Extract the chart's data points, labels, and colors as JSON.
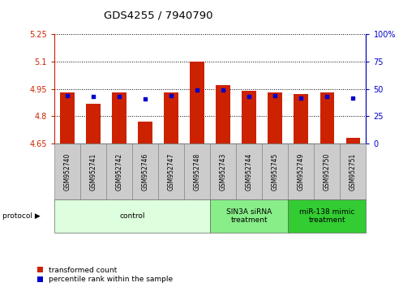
{
  "title": "GDS4255 / 7940790",
  "samples": [
    "GSM952740",
    "GSM952741",
    "GSM952742",
    "GSM952746",
    "GSM952747",
    "GSM952748",
    "GSM952743",
    "GSM952744",
    "GSM952745",
    "GSM952749",
    "GSM952750",
    "GSM952751"
  ],
  "transformed_counts": [
    4.93,
    4.87,
    4.93,
    4.77,
    4.93,
    5.1,
    4.97,
    4.94,
    4.93,
    4.92,
    4.93,
    4.68
  ],
  "percentile_ranks": [
    44,
    43,
    43,
    41,
    44,
    49,
    49,
    43,
    44,
    42,
    43,
    42
  ],
  "ylim_left": [
    4.65,
    5.25
  ],
  "ylim_right": [
    0,
    100
  ],
  "yticks_left": [
    4.65,
    4.8,
    4.95,
    5.1,
    5.25
  ],
  "ytick_labels_left": [
    "4.65",
    "4.8",
    "4.95",
    "5.1",
    "5.25"
  ],
  "yticks_right": [
    0,
    25,
    50,
    75,
    100
  ],
  "ytick_labels_right": [
    "0",
    "25",
    "50",
    "75",
    "100%"
  ],
  "bar_color": "#cc2200",
  "dot_color": "#0000cc",
  "background_plot": "#ffffff",
  "groups": [
    {
      "label": "control",
      "start": 0,
      "end": 6,
      "color": "#ddffdd"
    },
    {
      "label": "SIN3A siRNA\ntreatment",
      "start": 6,
      "end": 9,
      "color": "#88ee88"
    },
    {
      "label": "miR-138 mimic\ntreatment",
      "start": 9,
      "end": 12,
      "color": "#33cc33"
    }
  ],
  "legend_labels": [
    "transformed count",
    "percentile rank within the sample"
  ],
  "legend_colors": [
    "#cc2200",
    "#0000cc"
  ],
  "bar_width": 0.55,
  "base_value": 4.65
}
